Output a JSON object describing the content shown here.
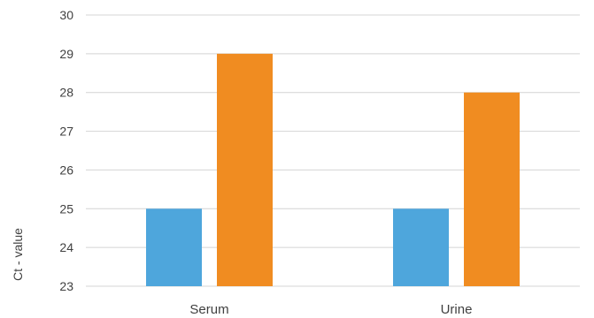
{
  "chart_data": {
    "type": "bar",
    "title": "",
    "xlabel": "",
    "ylabel": "Ct - value",
    "categories": [
      "Serum",
      "Urine"
    ],
    "ylim": [
      23,
      30
    ],
    "yticks": [
      23,
      24,
      25,
      26,
      27,
      28,
      29,
      30
    ],
    "grid": true,
    "legend": "none",
    "series": [
      {
        "values": [
          25,
          25
        ],
        "color": "#4ea6dc"
      },
      {
        "values": [
          29,
          28
        ],
        "color": "#f08c21"
      }
    ]
  }
}
